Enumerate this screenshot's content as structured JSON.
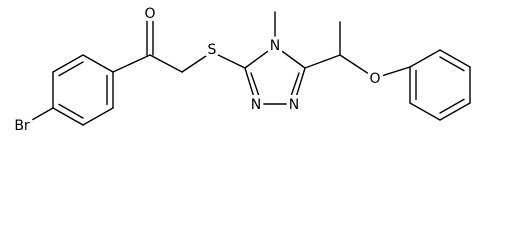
{
  "atoms": [
    {
      "label": "O"
    },
    {
      "label": "S"
    },
    {
      "label": "N"
    },
    {
      "label": "N"
    },
    {
      "label": "N"
    },
    {
      "label": "O"
    },
    {
      "label": "Br"
    }
  ]
}
